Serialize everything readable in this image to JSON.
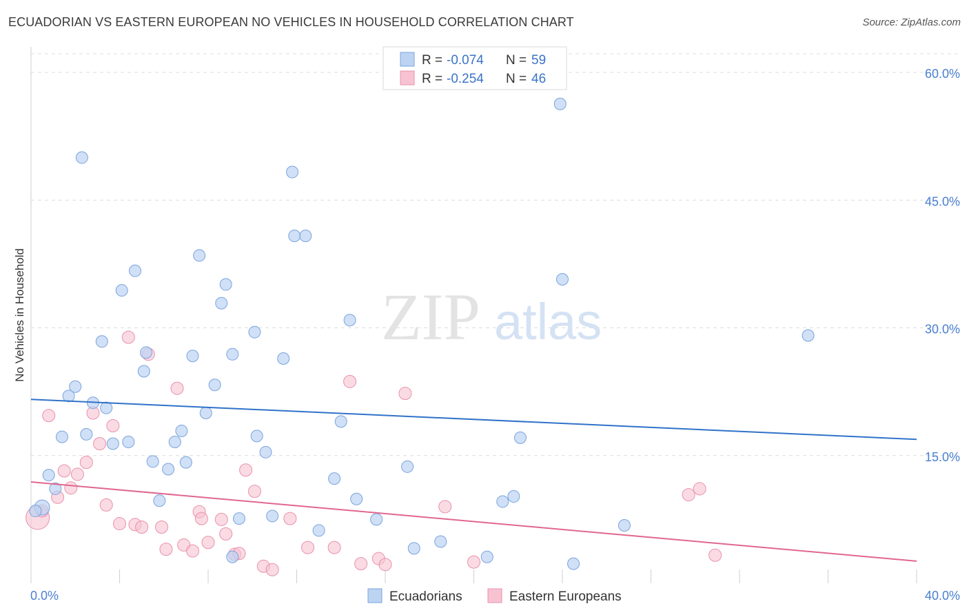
{
  "header": {
    "title": "ECUADORIAN VS EASTERN EUROPEAN NO VEHICLES IN HOUSEHOLD CORRELATION CHART",
    "source": "Source: ZipAtlas.com"
  },
  "watermark": {
    "zip": "ZIP",
    "atlas": "atlas"
  },
  "legend": {
    "rows": [
      {
        "r_label": "R =",
        "r_value": "-0.074",
        "n_label": "N =",
        "n_value": "59"
      },
      {
        "r_label": "R =",
        "r_value": "-0.254",
        "n_label": "N =",
        "n_value": "46"
      }
    ]
  },
  "bottom_legend": {
    "items": [
      "Ecuadorians",
      "Eastern Europeans"
    ]
  },
  "colors": {
    "blue_fill": "#bcd3f2",
    "blue_stroke": "#7aa3de",
    "blue_line": "#2f72c9",
    "pink_fill": "#f7c3d2",
    "pink_stroke": "#e890aa",
    "pink_line": "#e0668f",
    "grid": "#dcdcdc",
    "tick_text": "#4a7fd0"
  },
  "chart_data": {
    "type": "scatter",
    "title": "ECUADORIAN VS EASTERN EUROPEAN NO VEHICLES IN HOUSEHOLD CORRELATION CHART",
    "xlabel": "",
    "ylabel": "No Vehicles in Household",
    "xlim": [
      0,
      40
    ],
    "ylim": [
      0,
      63
    ],
    "x_tick_labels": [
      "0.0%",
      "40.0%"
    ],
    "y_ticks": [
      15,
      30,
      45,
      60
    ],
    "y_tick_labels": [
      "15.0%",
      "30.0%",
      "45.0%",
      "60.0%"
    ],
    "grid": true,
    "series": [
      {
        "name": "Ecuadorians",
        "r": -0.074,
        "n": 59,
        "trend": {
          "x": [
            0,
            40
          ],
          "y": [
            21.6,
            16.9
          ]
        },
        "points": [
          [
            2.3,
            50.0
          ],
          [
            11.8,
            48.3
          ],
          [
            23.9,
            56.3
          ],
          [
            11.9,
            40.8
          ],
          [
            12.4,
            40.8
          ],
          [
            7.6,
            38.5
          ],
          [
            4.7,
            36.7
          ],
          [
            4.1,
            34.4
          ],
          [
            8.8,
            35.1
          ],
          [
            8.6,
            32.9
          ],
          [
            14.4,
            30.9
          ],
          [
            10.1,
            29.5
          ],
          [
            3.2,
            28.4
          ],
          [
            5.2,
            27.1
          ],
          [
            7.3,
            26.7
          ],
          [
            9.1,
            26.9
          ],
          [
            11.4,
            26.4
          ],
          [
            5.1,
            24.9
          ],
          [
            2.0,
            23.1
          ],
          [
            8.3,
            23.3
          ],
          [
            1.7,
            22.0
          ],
          [
            2.8,
            21.2
          ],
          [
            3.4,
            20.6
          ],
          [
            7.9,
            20.0
          ],
          [
            14.0,
            19.0
          ],
          [
            1.4,
            17.2
          ],
          [
            2.5,
            17.5
          ],
          [
            3.7,
            16.4
          ],
          [
            4.4,
            16.6
          ],
          [
            6.5,
            16.6
          ],
          [
            6.8,
            17.9
          ],
          [
            10.2,
            17.3
          ],
          [
            22.1,
            17.1
          ],
          [
            10.6,
            15.4
          ],
          [
            5.5,
            14.3
          ],
          [
            7.0,
            14.2
          ],
          [
            17.0,
            13.7
          ],
          [
            6.2,
            13.4
          ],
          [
            0.8,
            12.7
          ],
          [
            13.7,
            12.3
          ],
          [
            1.1,
            11.1
          ],
          [
            5.8,
            9.7
          ],
          [
            14.7,
            9.9
          ],
          [
            21.8,
            10.2
          ],
          [
            21.3,
            9.6
          ],
          [
            0.5,
            8.9
          ],
          [
            0.2,
            8.5
          ],
          [
            9.4,
            7.6
          ],
          [
            10.9,
            7.9
          ],
          [
            15.6,
            7.5
          ],
          [
            26.8,
            6.8
          ],
          [
            13.0,
            6.2
          ],
          [
            18.5,
            4.9
          ],
          [
            17.3,
            4.1
          ],
          [
            20.6,
            3.1
          ],
          [
            24.5,
            2.3
          ],
          [
            9.1,
            3.1
          ],
          [
            35.1,
            29.1
          ],
          [
            24.0,
            35.7
          ]
        ]
      },
      {
        "name": "Eastern Europeans",
        "r": -0.254,
        "n": 46,
        "trend": {
          "x": [
            0,
            40
          ],
          "y": [
            11.9,
            2.6
          ]
        },
        "points": [
          [
            0.3,
            7.7
          ],
          [
            0.5,
            8.5
          ],
          [
            0.8,
            19.7
          ],
          [
            1.2,
            10.1
          ],
          [
            1.5,
            13.2
          ],
          [
            1.8,
            11.2
          ],
          [
            2.1,
            12.8
          ],
          [
            2.5,
            14.2
          ],
          [
            2.8,
            20.0
          ],
          [
            3.1,
            16.4
          ],
          [
            3.4,
            9.2
          ],
          [
            3.7,
            18.5
          ],
          [
            4.0,
            7.0
          ],
          [
            4.4,
            28.9
          ],
          [
            4.7,
            6.9
          ],
          [
            5.0,
            6.6
          ],
          [
            5.3,
            26.9
          ],
          [
            5.9,
            6.6
          ],
          [
            6.1,
            4.0
          ],
          [
            6.6,
            22.9
          ],
          [
            6.9,
            4.5
          ],
          [
            7.3,
            3.8
          ],
          [
            7.6,
            8.4
          ],
          [
            7.7,
            7.6
          ],
          [
            8.0,
            4.8
          ],
          [
            8.6,
            7.5
          ],
          [
            8.8,
            5.8
          ],
          [
            9.2,
            3.4
          ],
          [
            9.4,
            3.5
          ],
          [
            9.7,
            13.3
          ],
          [
            10.1,
            10.8
          ],
          [
            10.5,
            2.0
          ],
          [
            10.9,
            1.6
          ],
          [
            11.7,
            7.6
          ],
          [
            12.5,
            4.2
          ],
          [
            13.7,
            4.2
          ],
          [
            14.4,
            23.7
          ],
          [
            14.9,
            2.3
          ],
          [
            15.7,
            2.9
          ],
          [
            16.0,
            2.2
          ],
          [
            16.9,
            22.3
          ],
          [
            18.7,
            9.0
          ],
          [
            20.0,
            2.5
          ],
          [
            29.7,
            10.4
          ],
          [
            30.2,
            11.1
          ],
          [
            30.9,
            3.3
          ]
        ]
      }
    ]
  }
}
